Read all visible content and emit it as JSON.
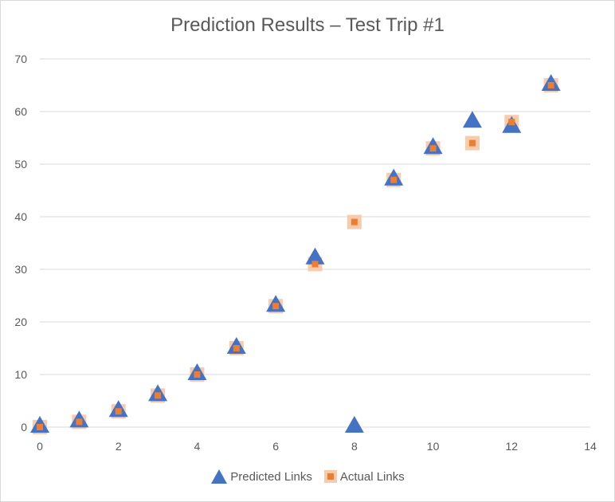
{
  "chart_data": {
    "type": "scatter",
    "title": "Prediction Results – Test Trip #1",
    "xlabel": "",
    "ylabel": "",
    "xlim": [
      0,
      14
    ],
    "ylim": [
      0,
      70
    ],
    "xticks": [
      0,
      2,
      4,
      6,
      8,
      10,
      12,
      14
    ],
    "yticks": [
      0,
      10,
      20,
      30,
      40,
      50,
      60,
      70
    ],
    "grid": "horizontal",
    "legend_position": "bottom",
    "series": [
      {
        "name": "Predicted Links",
        "marker": "triangle",
        "color": "#4472c4",
        "x": [
          0,
          1,
          2,
          3,
          4,
          5,
          6,
          7,
          8,
          9,
          10,
          11,
          12,
          13
        ],
        "y": [
          0,
          1,
          3,
          6,
          10,
          15,
          23,
          32,
          0,
          47,
          53,
          58,
          57,
          65
        ]
      },
      {
        "name": "Actual Links",
        "marker": "square",
        "color": "#ed7d31",
        "x": [
          0,
          1,
          2,
          3,
          4,
          5,
          6,
          7,
          8,
          9,
          10,
          11,
          12,
          13
        ],
        "y": [
          0,
          1,
          3,
          6,
          10,
          15,
          23,
          31,
          39,
          47,
          53,
          54,
          58,
          65
        ]
      }
    ]
  }
}
